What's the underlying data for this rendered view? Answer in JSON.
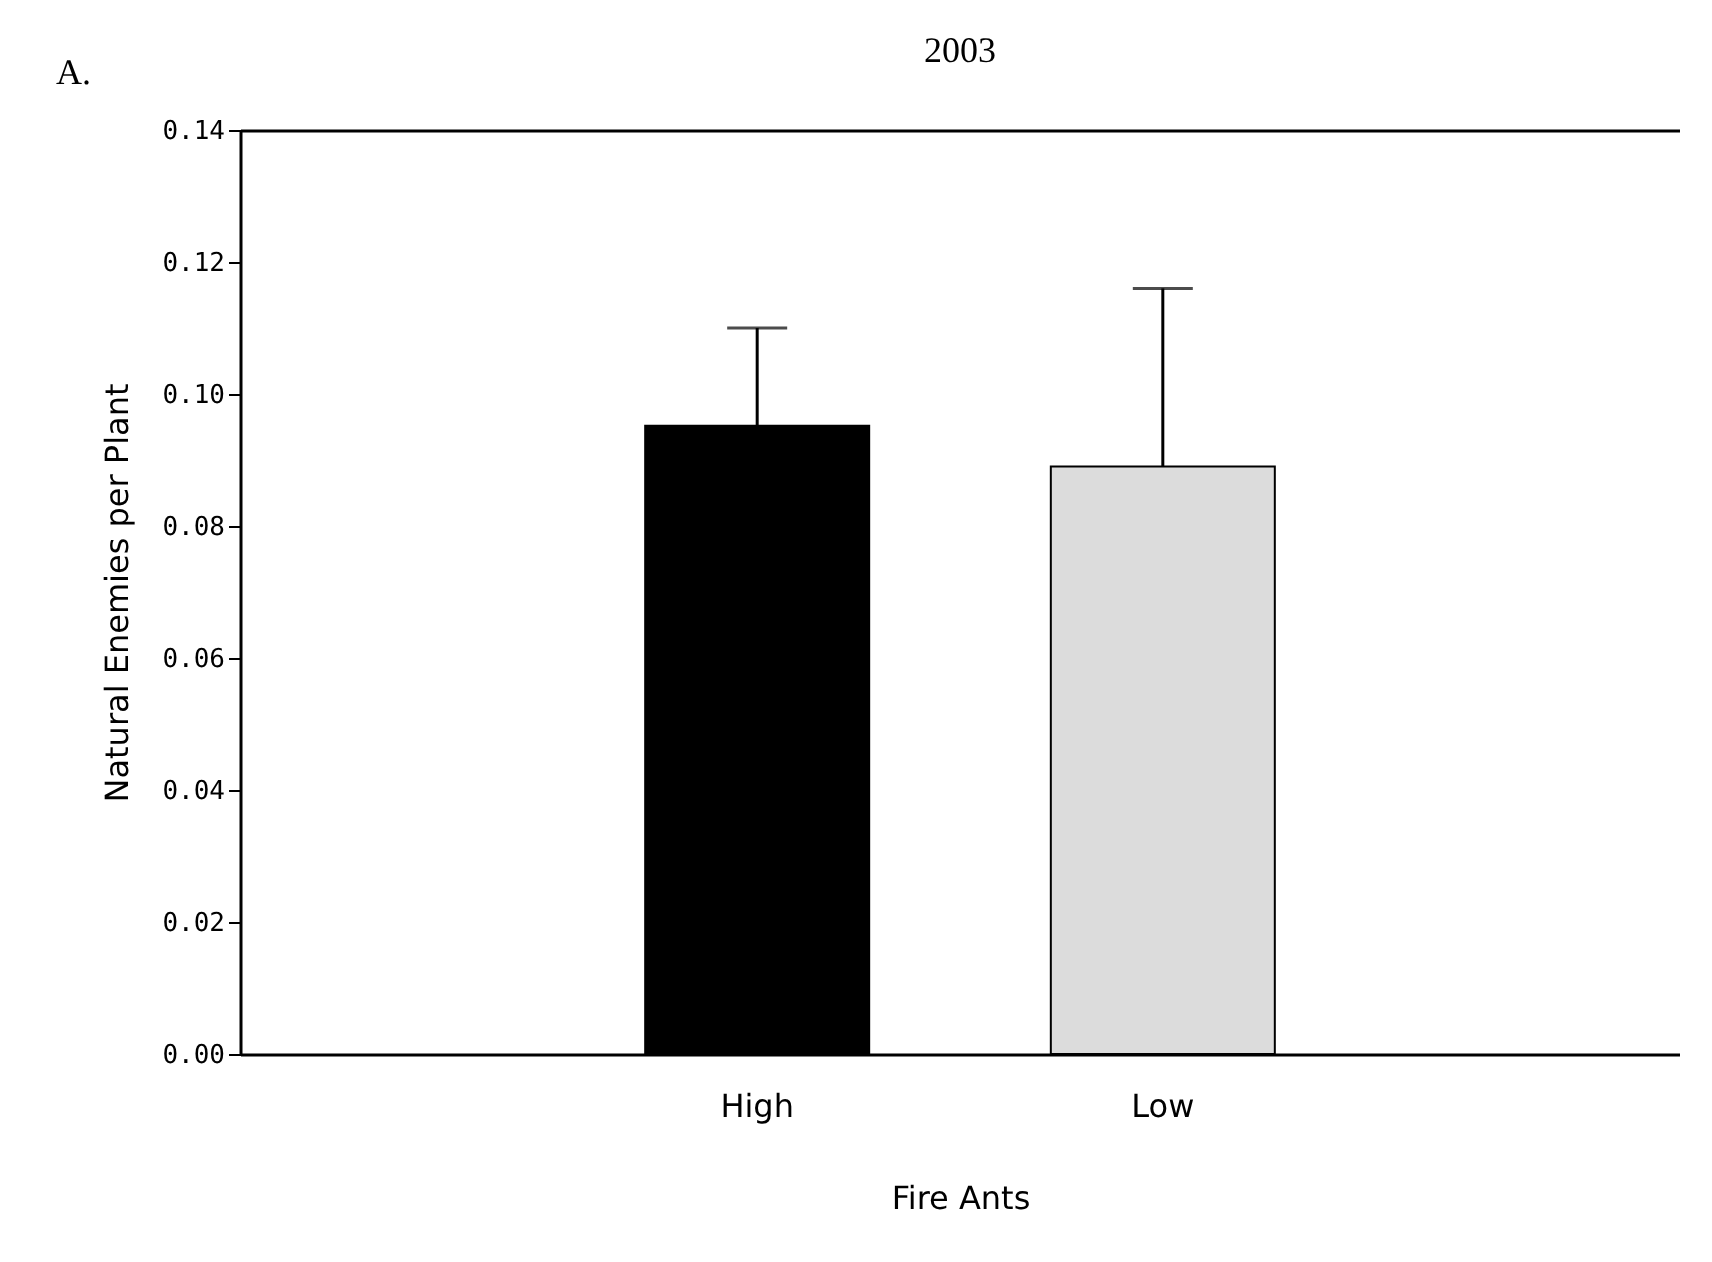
{
  "chart_data": {
    "type": "bar",
    "title": "2003",
    "xlabel": "Fire Ants",
    "ylabel": "Natural Enemies per Plant",
    "annotations": [
      "A."
    ],
    "categories": [
      "High",
      "Low"
    ],
    "series": [
      {
        "colors": [
          "#000000",
          "#dcdcdc"
        ],
        "values": [
          0.0952,
          0.089
        ],
        "errors": [
          [
            0.0952,
            0.11
          ],
          [
            0.089,
            0.116
          ]
        ]
      }
    ],
    "ylim": [
      0,
      0.14
    ],
    "yticks": [
      {
        "value": 0,
        "label": "0.00"
      },
      {
        "value": 0.02,
        "label": "0.02"
      },
      {
        "value": 0.04,
        "label": "0.04"
      },
      {
        "value": 0.06,
        "label": "0.06"
      },
      {
        "value": 0.08,
        "label": "0.08"
      },
      {
        "value": 0.1,
        "label": "0.10"
      },
      {
        "value": 0.12,
        "label": "0.12"
      },
      {
        "value": 0.14,
        "label": "0.14"
      }
    ],
    "grid": false
  }
}
